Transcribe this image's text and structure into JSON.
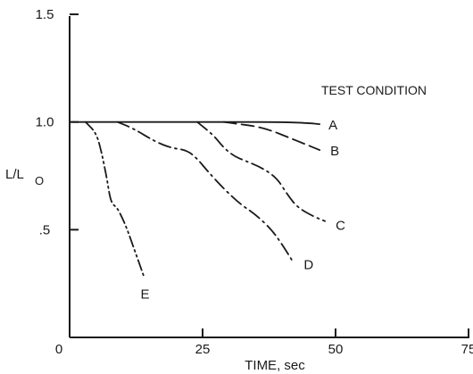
{
  "chart_data": {
    "type": "line",
    "title": "",
    "xlabel": "TIME, sec",
    "ylabel_main": "L/L",
    "ylabel_sub": "O",
    "legend_title": "TEST CONDITION",
    "xlim": [
      0,
      75
    ],
    "ylim": [
      0,
      1.5
    ],
    "x_ticks": [
      0,
      25,
      50,
      75
    ],
    "x_tick_labels": [
      "0",
      "25",
      "50",
      "75"
    ],
    "y_ticks": [
      0.5,
      1.0,
      1.5
    ],
    "y_tick_labels": [
      ".5",
      "1.0",
      "1.5"
    ],
    "grid": false,
    "series": [
      {
        "name": "A",
        "dash": "solid",
        "x": [
          0,
          10,
          20,
          30,
          40,
          45,
          47
        ],
        "y": [
          1.0,
          1.0,
          1.0,
          1.0,
          1.0,
          0.995,
          0.99
        ]
      },
      {
        "name": "B",
        "dash": "longdash",
        "x": [
          29,
          32,
          35,
          38,
          41,
          44,
          47
        ],
        "y": [
          1.0,
          0.99,
          0.98,
          0.96,
          0.93,
          0.9,
          0.87
        ]
      },
      {
        "name": "C",
        "dash": "dashdot",
        "x": [
          24,
          27,
          29,
          31,
          33,
          36,
          39,
          41,
          43,
          46,
          48
        ],
        "y": [
          1.0,
          0.94,
          0.88,
          0.84,
          0.82,
          0.79,
          0.74,
          0.66,
          0.6,
          0.56,
          0.54
        ]
      },
      {
        "name": "D",
        "dash": "dashdot",
        "x": [
          9,
          12,
          16,
          19,
          22,
          24,
          26,
          29,
          32,
          35,
          38,
          40,
          42
        ],
        "y": [
          1.0,
          0.97,
          0.91,
          0.88,
          0.87,
          0.83,
          0.77,
          0.69,
          0.62,
          0.57,
          0.5,
          0.43,
          0.35
        ]
      },
      {
        "name": "E",
        "dash": "dashdotdot",
        "x": [
          3,
          5,
          6,
          7,
          7.5,
          8,
          9,
          10,
          11,
          12,
          13,
          14
        ],
        "y": [
          1.0,
          0.95,
          0.86,
          0.74,
          0.66,
          0.62,
          0.6,
          0.55,
          0.49,
          0.42,
          0.35,
          0.28
        ]
      }
    ]
  }
}
